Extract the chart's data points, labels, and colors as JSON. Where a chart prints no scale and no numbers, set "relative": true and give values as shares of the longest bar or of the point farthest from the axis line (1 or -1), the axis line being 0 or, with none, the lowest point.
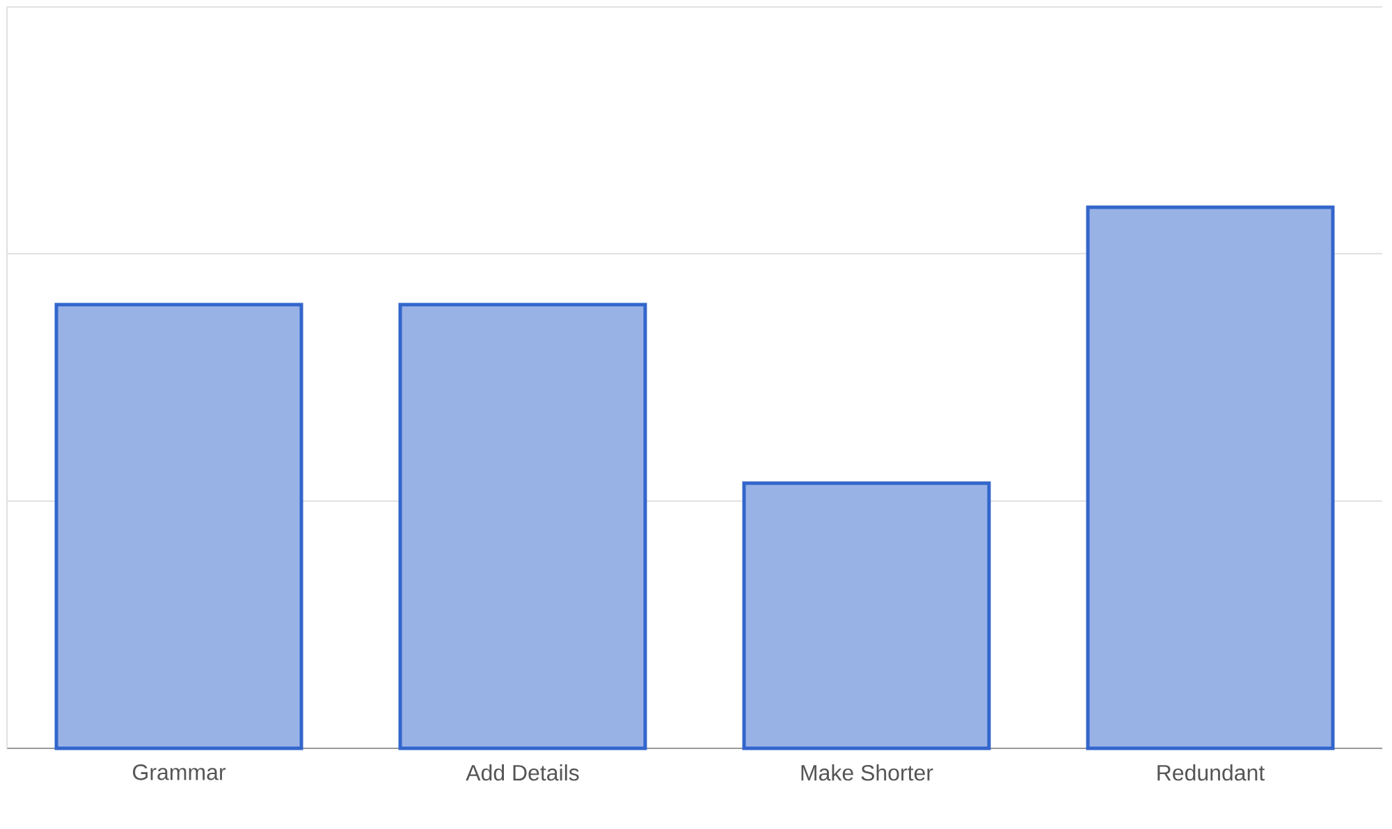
{
  "chart_data": {
    "type": "bar",
    "relative": true,
    "categories": [
      "Grammar",
      "Add Details",
      "Make Shorter",
      "Redundant"
    ],
    "values": [
      0.82,
      0.82,
      0.49,
      1
    ],
    "color": "#3366cc",
    "ref_lines": [
      {
        "axis": "y",
        "value": 0.457,
        "color": "#e0e0e0"
      },
      {
        "axis": "y",
        "value": 0.914,
        "color": "#e0e0e0"
      },
      {
        "axis": "y",
        "value": 1.37,
        "color": "#e0e0e0"
      }
    ]
  }
}
